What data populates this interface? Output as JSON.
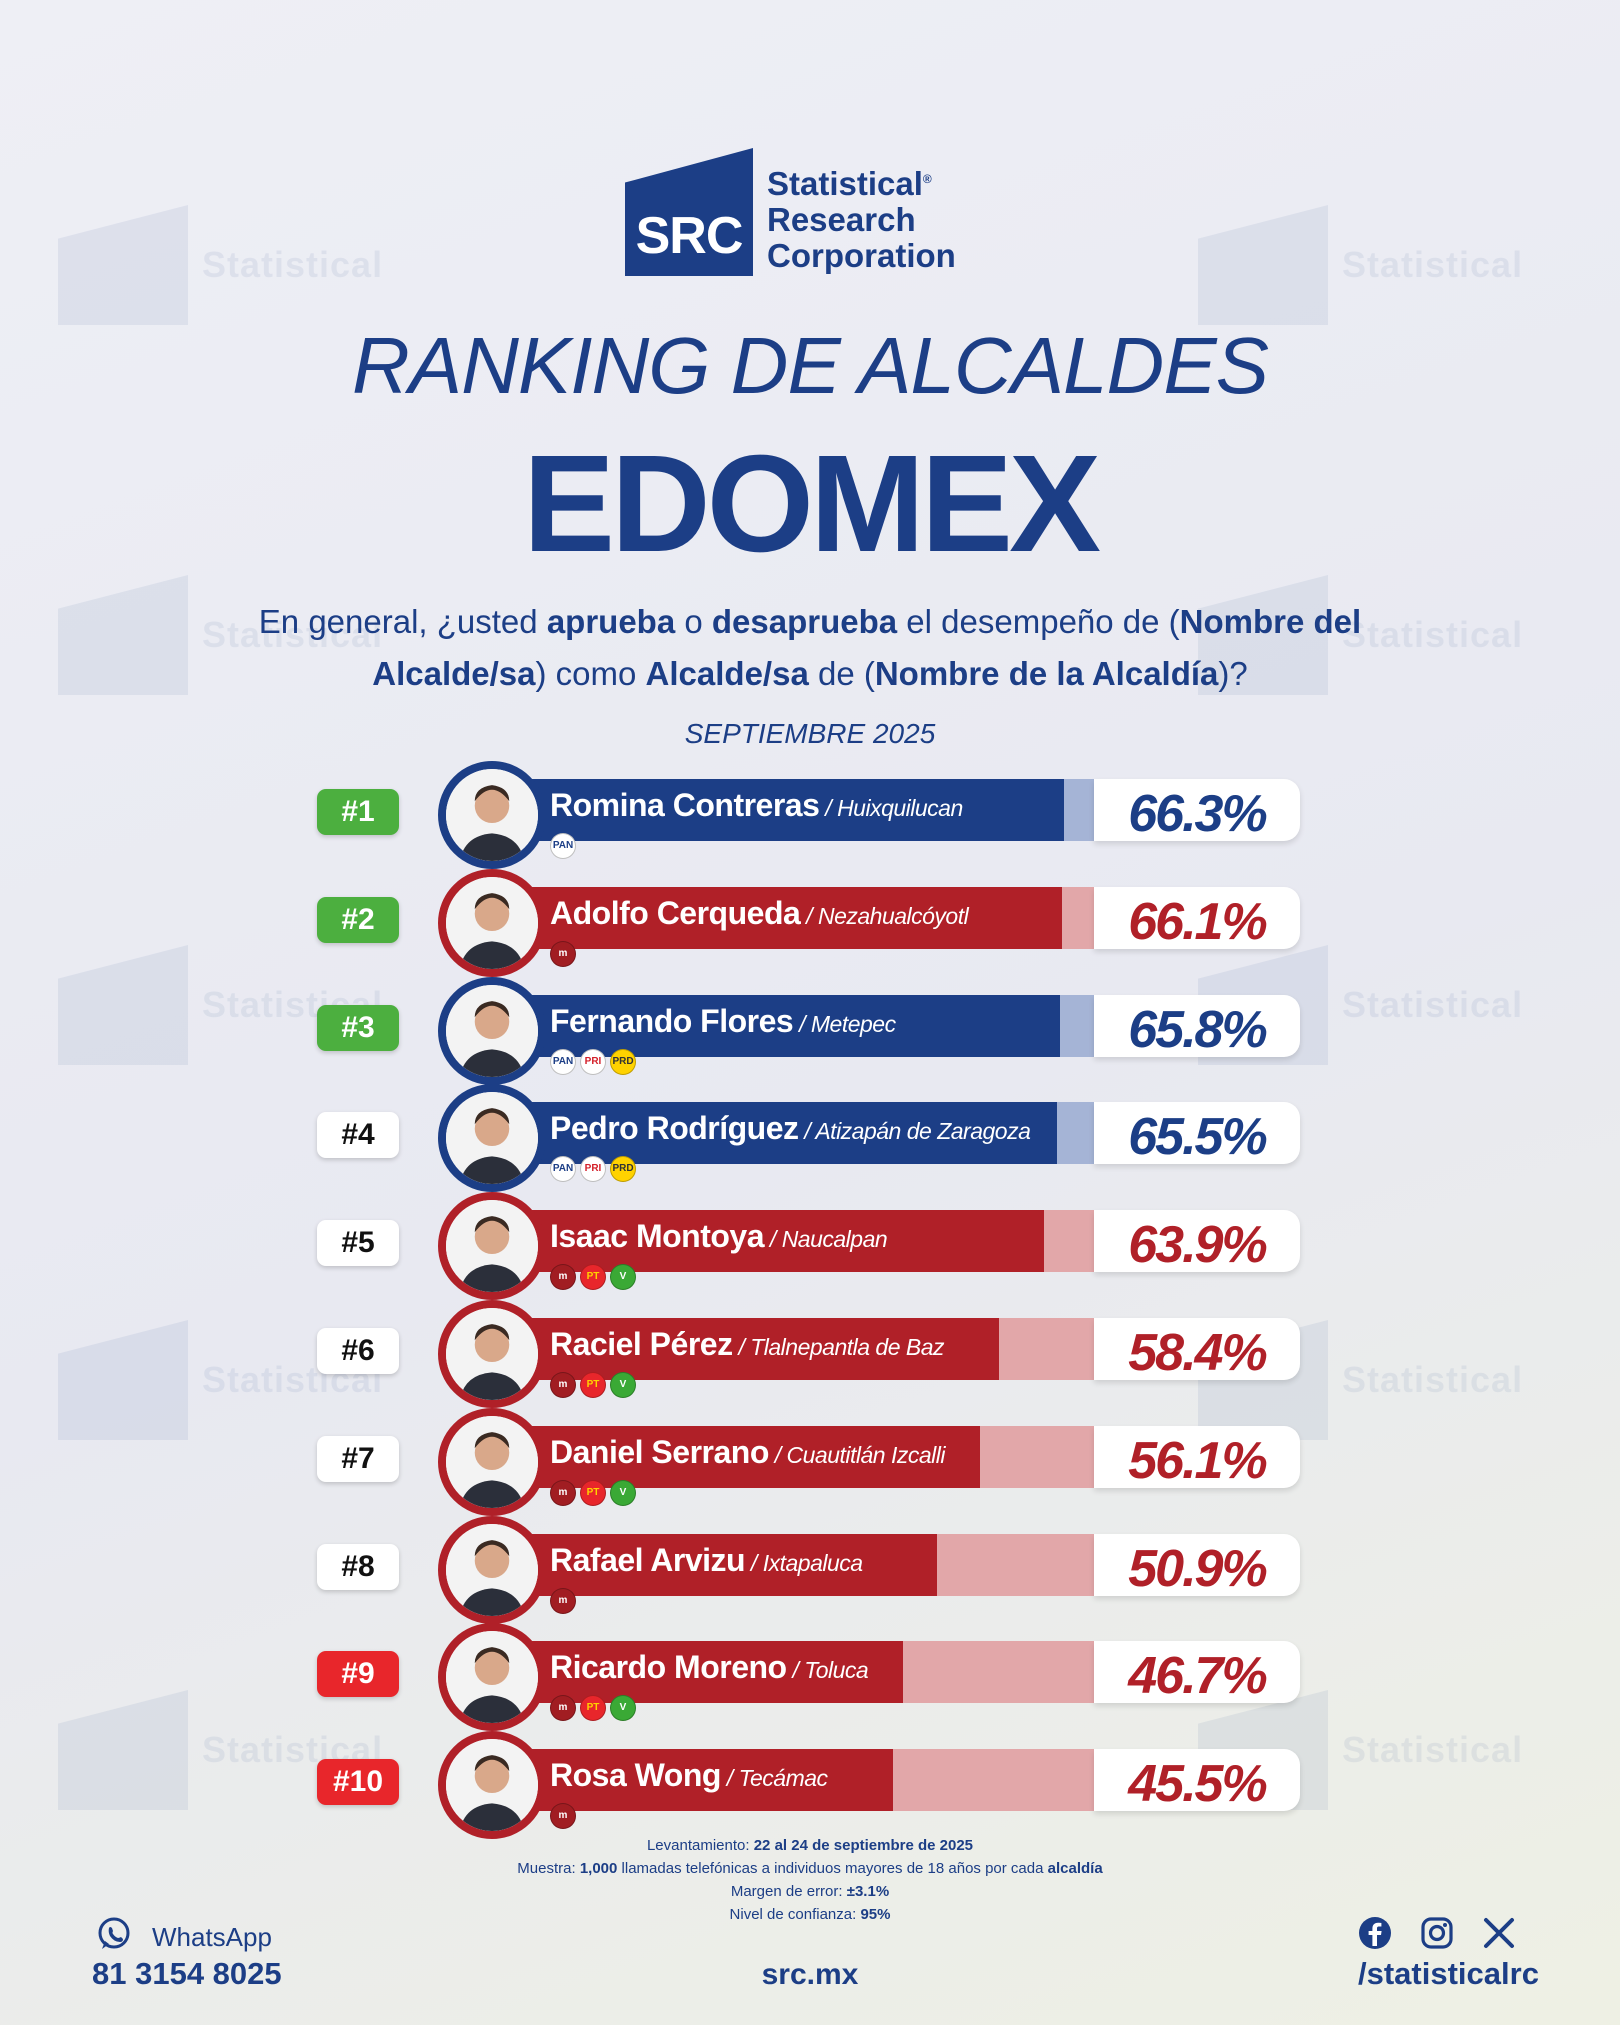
{
  "brand": {
    "logo_short": "SRC",
    "line1": "Statistical",
    "line2": "Research",
    "line3": "Corporation",
    "registered": "®"
  },
  "title_line1": "RANKING DE ALCALDES",
  "title_line2": "EDOMEX",
  "question": {
    "p1": "En general, ¿usted ",
    "b1": "aprueba",
    "p2": " o ",
    "b2": "desaprueba",
    "p3": " el desempeño de (",
    "b3": "Nombre del Alcalde/sa",
    "p4": ") como ",
    "b4": "Alcalde/sa",
    "p5": " de (",
    "b5": "Nombre de la Alcaldía",
    "p6": ")?"
  },
  "month": "SEPTIEMBRE 2025",
  "colors": {
    "blue": "#1c3e86",
    "blue_light": "#a5b4d6",
    "red": "#b02028",
    "red_light": "#e2a7a9",
    "green": "#4caf3f",
    "alert_red": "#e8262b"
  },
  "chart_data": {
    "type": "bar",
    "title": "RANKING DE ALCALDES",
    "xlabel": "",
    "ylabel": "",
    "ylim": [
      0,
      100
    ],
    "categories": [
      "Romina Contreras",
      "Adolfo Cerqueda",
      "Fernando Flores",
      "Pedro Rodríguez",
      "Isaac Montoya",
      "Raciel Pérez",
      "Daniel Serrano",
      "Rafael Arvizu",
      "Ricardo Moreno",
      "Rosa Wong"
    ],
    "values": [
      66.3,
      66.1,
      65.8,
      65.5,
      63.9,
      58.4,
      56.1,
      50.9,
      46.7,
      45.5
    ],
    "rows": [
      {
        "rank": "#1",
        "rank_style": "green",
        "name": "Romina Contreras",
        "city": "Huixquilucan",
        "pct": "66.3%",
        "value": 66.3,
        "party_color": "blue",
        "parties": [
          "PAN"
        ]
      },
      {
        "rank": "#2",
        "rank_style": "green",
        "name": "Adolfo Cerqueda",
        "city": "Nezahualcóyotl",
        "pct": "66.1%",
        "value": 66.1,
        "party_color": "red",
        "parties": [
          "morena"
        ]
      },
      {
        "rank": "#3",
        "rank_style": "green",
        "name": "Fernando Flores",
        "city": "Metepec",
        "pct": "65.8%",
        "value": 65.8,
        "party_color": "blue",
        "parties": [
          "PAN",
          "PRI",
          "PRD"
        ]
      },
      {
        "rank": "#4",
        "rank_style": "white",
        "name": "Pedro Rodríguez",
        "city": "Atizapán de Zaragoza",
        "pct": "65.5%",
        "value": 65.5,
        "party_color": "blue",
        "parties": [
          "PAN",
          "PRI",
          "PRD"
        ]
      },
      {
        "rank": "#5",
        "rank_style": "white",
        "name": "Isaac Montoya",
        "city": "Naucalpan",
        "pct": "63.9%",
        "value": 63.9,
        "party_color": "red",
        "parties": [
          "morena",
          "PT",
          "VERDE"
        ]
      },
      {
        "rank": "#6",
        "rank_style": "white",
        "name": "Raciel Pérez",
        "city": "Tlalnepantla de Baz",
        "pct": "58.4%",
        "value": 58.4,
        "party_color": "red",
        "parties": [
          "morena",
          "PT",
          "VERDE"
        ]
      },
      {
        "rank": "#7",
        "rank_style": "white",
        "name": "Daniel Serrano",
        "city": "Cuautitlán Izcalli",
        "pct": "56.1%",
        "value": 56.1,
        "party_color": "red",
        "parties": [
          "morena",
          "PT",
          "VERDE"
        ]
      },
      {
        "rank": "#8",
        "rank_style": "white",
        "name": "Rafael Arvizu",
        "city": "Ixtapaluca",
        "pct": "50.9%",
        "value": 50.9,
        "party_color": "red",
        "parties": [
          "morena"
        ]
      },
      {
        "rank": "#9",
        "rank_style": "red",
        "name": "Ricardo Moreno",
        "city": "Toluca",
        "pct": "46.7%",
        "value": 46.7,
        "party_color": "red",
        "parties": [
          "morena",
          "PT",
          "VERDE"
        ]
      },
      {
        "rank": "#10",
        "rank_style": "red",
        "name": "Rosa Wong",
        "city": "Tecámac",
        "pct": "45.5%",
        "value": 45.5,
        "party_color": "red",
        "parties": [
          "morena"
        ]
      }
    ]
  },
  "footnote": {
    "l1_label": "Levantamiento: ",
    "l1_value": "22 al 24 de septiembre de 2025",
    "l2_label": "Muestra: ",
    "l2_value": "1,000",
    "l2_rest": " llamadas telefónicas a individuos mayores de 18 años por cada ",
    "l2_end": "alcaldía",
    "l3_label": "Margen de error: ",
    "l3_value": "±3.1%",
    "l4_label": "Nivel de confianza: ",
    "l4_value": "95%"
  },
  "contact": {
    "whatsapp_label": "WhatsApp",
    "phone": "81 3154 8025",
    "site": "src.mx",
    "handle": "/statisticalrc"
  }
}
